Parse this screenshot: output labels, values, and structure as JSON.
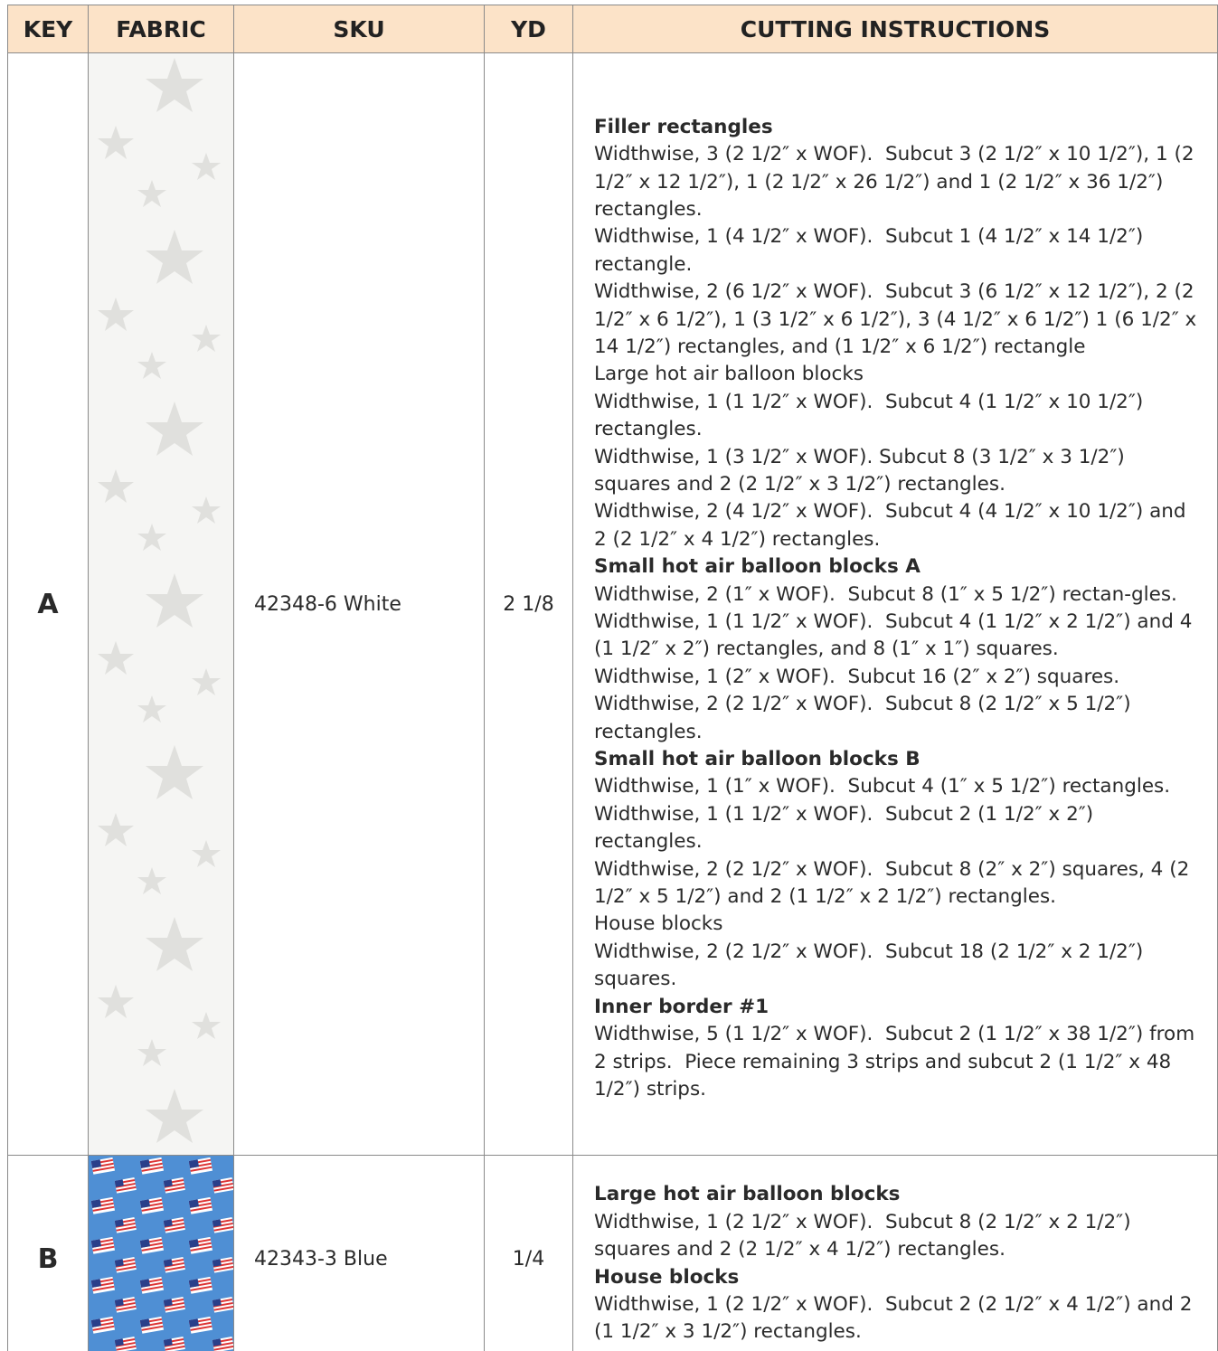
{
  "table": {
    "columns": [
      "KEY",
      "FABRIC",
      "SKU",
      "YD",
      "CUTTING INSTRUCTIONS"
    ],
    "rows": [
      {
        "key": "A",
        "sku": "42348-6 White",
        "yd": "2 1/8",
        "instructions": [
          {
            "text": "Filler rectangles",
            "bold": true
          },
          "Widthwise, 3 (2 1/2″ x WOF).  Subcut 3 (2 1/2″ x 10 1/2″), 1 (2 1/2″ x 12 1/2″), 1 (2 1/2″ x 26 1/2″) and 1 (2 1/2″ x 36 1/2″) rectangles.",
          "Widthwise, 1 (4 1/2″ x WOF).  Subcut 1 (4 1/2″ x 14 1/2″) rectangle.",
          "Widthwise, 2 (6 1/2″ x WOF).  Subcut 3 (6 1/2″ x 12 1/2″), 2 (2 1/2″ x 6 1/2″), 1 (3 1/2″ x 6 1/2″), 3 (4 1/2″ x 6 1/2″) 1 (6 1/2″ x 14 1/2″) rectangles, and (1 1/2″ x 6 1/2″) rectangle",
          "Large hot air balloon blocks",
          "Widthwise, 1 (1 1/2″ x WOF).  Subcut 4 (1 1/2″ x 10 1/2″) rectangles.",
          "Widthwise, 1 (3 1/2″ x WOF). Subcut 8 (3 1/2″ x 3 1/2″) squares and 2 (2 1/2″ x 3 1/2″) rectangles.",
          "Widthwise, 2 (4 1/2″ x WOF).  Subcut 4 (4 1/2″ x 10 1/2″) and 2 (2 1/2″ x 4 1/2″) rectangles.",
          {
            "text": "Small hot air balloon blocks A",
            "bold": true
          },
          "Widthwise, 2 (1″ x WOF).  Subcut 8 (1″ x 5 1/2″) rectan-gles.",
          "Widthwise, 1 (1 1/2″ x WOF).  Subcut 4 (1 1/2″ x 2 1/2″) and 4 (1 1/2″ x 2″) rectangles, and 8 (1″ x 1″) squares.",
          "Widthwise, 1 (2″ x WOF).  Subcut 16 (2″ x 2″) squares.",
          "Widthwise, 2 (2 1/2″ x WOF).  Subcut 8 (2 1/2″ x 5 1/2″) rectangles.",
          {
            "text": "Small hot air balloon blocks B",
            "bold": true
          },
          "Widthwise, 1 (1″ x WOF).  Subcut 4 (1″ x 5 1/2″) rectangles.",
          "Widthwise, 1 (1 1/2″ x WOF).  Subcut 2 (1 1/2″ x 2″) rectangles.",
          "Widthwise, 2 (2 1/2″ x WOF).  Subcut 8 (2″ x 2″) squares, 4 (2 1/2″ x 5 1/2″) and 2 (1 1/2″ x 2 1/2″) rectangles.",
          "House blocks",
          "Widthwise, 2 (2 1/2″ x WOF).  Subcut 18 (2 1/2″ x 2 1/2″) squares.",
          {
            "text": "Inner border #1",
            "bold": true
          },
          "Widthwise, 5 (1 1/2″ x WOF).  Subcut 2 (1 1/2″ x 38 1/2″) from 2 strips.  Piece remaining 3 strips and subcut 2 (1 1/2″ x 48 1/2″) strips."
        ]
      },
      {
        "key": "B",
        "sku": "42343-3 Blue",
        "yd": "1/4",
        "instructions": [
          {
            "text": "Large hot air balloon blocks",
            "bold": true
          },
          "Widthwise, 1 (2 1/2″ x WOF).  Subcut 8 (2 1/2″ x 2 1/2″) squares and 2 (2 1/2″ x 4 1/2″) rectangles.",
          {
            "text": "House blocks",
            "bold": true
          },
          "Widthwise, 1 (2 1/2″ x WOF).  Subcut 2 (2 1/2″ x 4 1/2″) and 2 (1 1/2″ x 3 1/2″) rectangles."
        ]
      }
    ]
  }
}
